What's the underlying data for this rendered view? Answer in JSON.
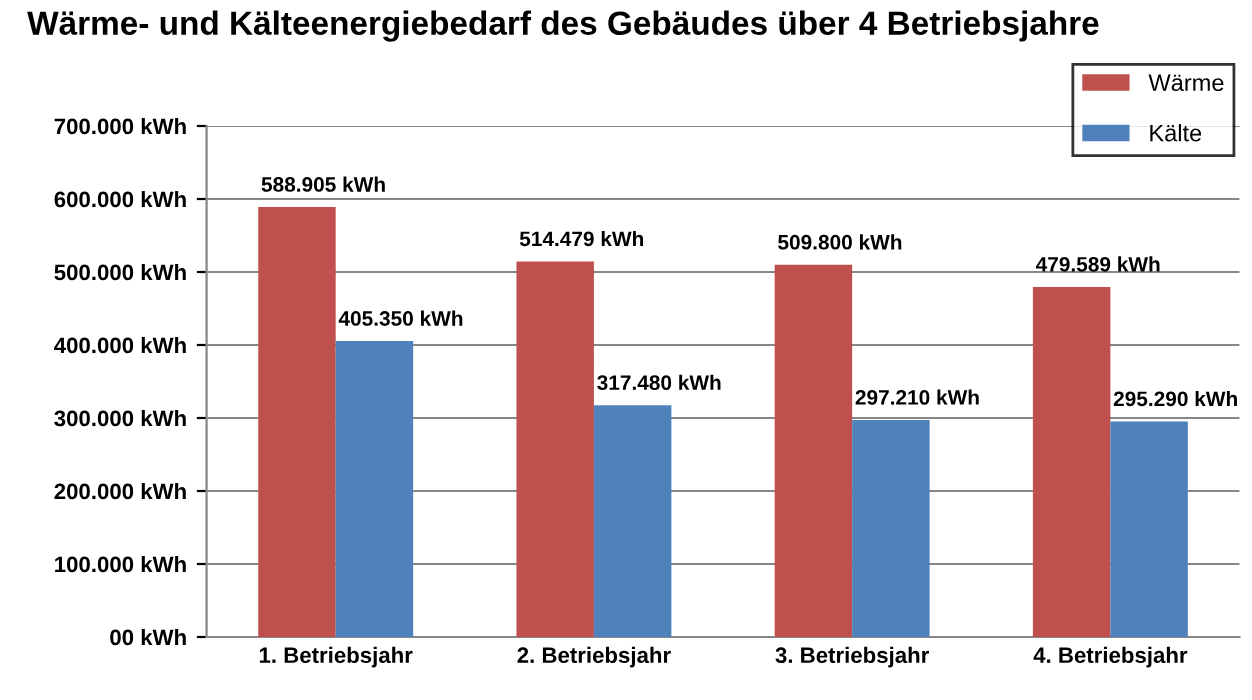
{
  "chart_data": {
    "type": "bar",
    "title": "Wärme- und Kälteenergiebedarf des Gebäudes über 4 Betriebsjahre",
    "categories": [
      "1. Betriebsjahr",
      "2. Betriebsjahr",
      "3. Betriebsjahr",
      "4. Betriebsjahr"
    ],
    "series": [
      {
        "name": "Wärme",
        "color": "#c0504d",
        "values": [
          588905,
          514479,
          509800,
          479589
        ],
        "value_labels": [
          "588.905 kWh",
          "514.479 kWh",
          "509.800 kWh",
          "479.589 kWh"
        ]
      },
      {
        "name": "Kälte",
        "color": "#4f81bd",
        "values": [
          405350,
          317480,
          297210,
          295290
        ],
        "value_labels": [
          "405.350 kWh",
          "317.480 kWh",
          "297.210 kWh",
          "295.290 kWh"
        ]
      }
    ],
    "ylim": [
      0,
      700000
    ],
    "yticks": [
      {
        "value": 0,
        "label": "00 kWh"
      },
      {
        "value": 100000,
        "label": "100.000 kWh"
      },
      {
        "value": 200000,
        "label": "200.000 kWh"
      },
      {
        "value": 300000,
        "label": "300.000 kWh"
      },
      {
        "value": 400000,
        "label": "400.000 kWh"
      },
      {
        "value": 500000,
        "label": "500.000 kWh"
      },
      {
        "value": 600000,
        "label": "600.000 kWh"
      },
      {
        "value": 700000,
        "label": "700.000 kWh"
      }
    ],
    "grid": "y",
    "legend": "top right"
  }
}
